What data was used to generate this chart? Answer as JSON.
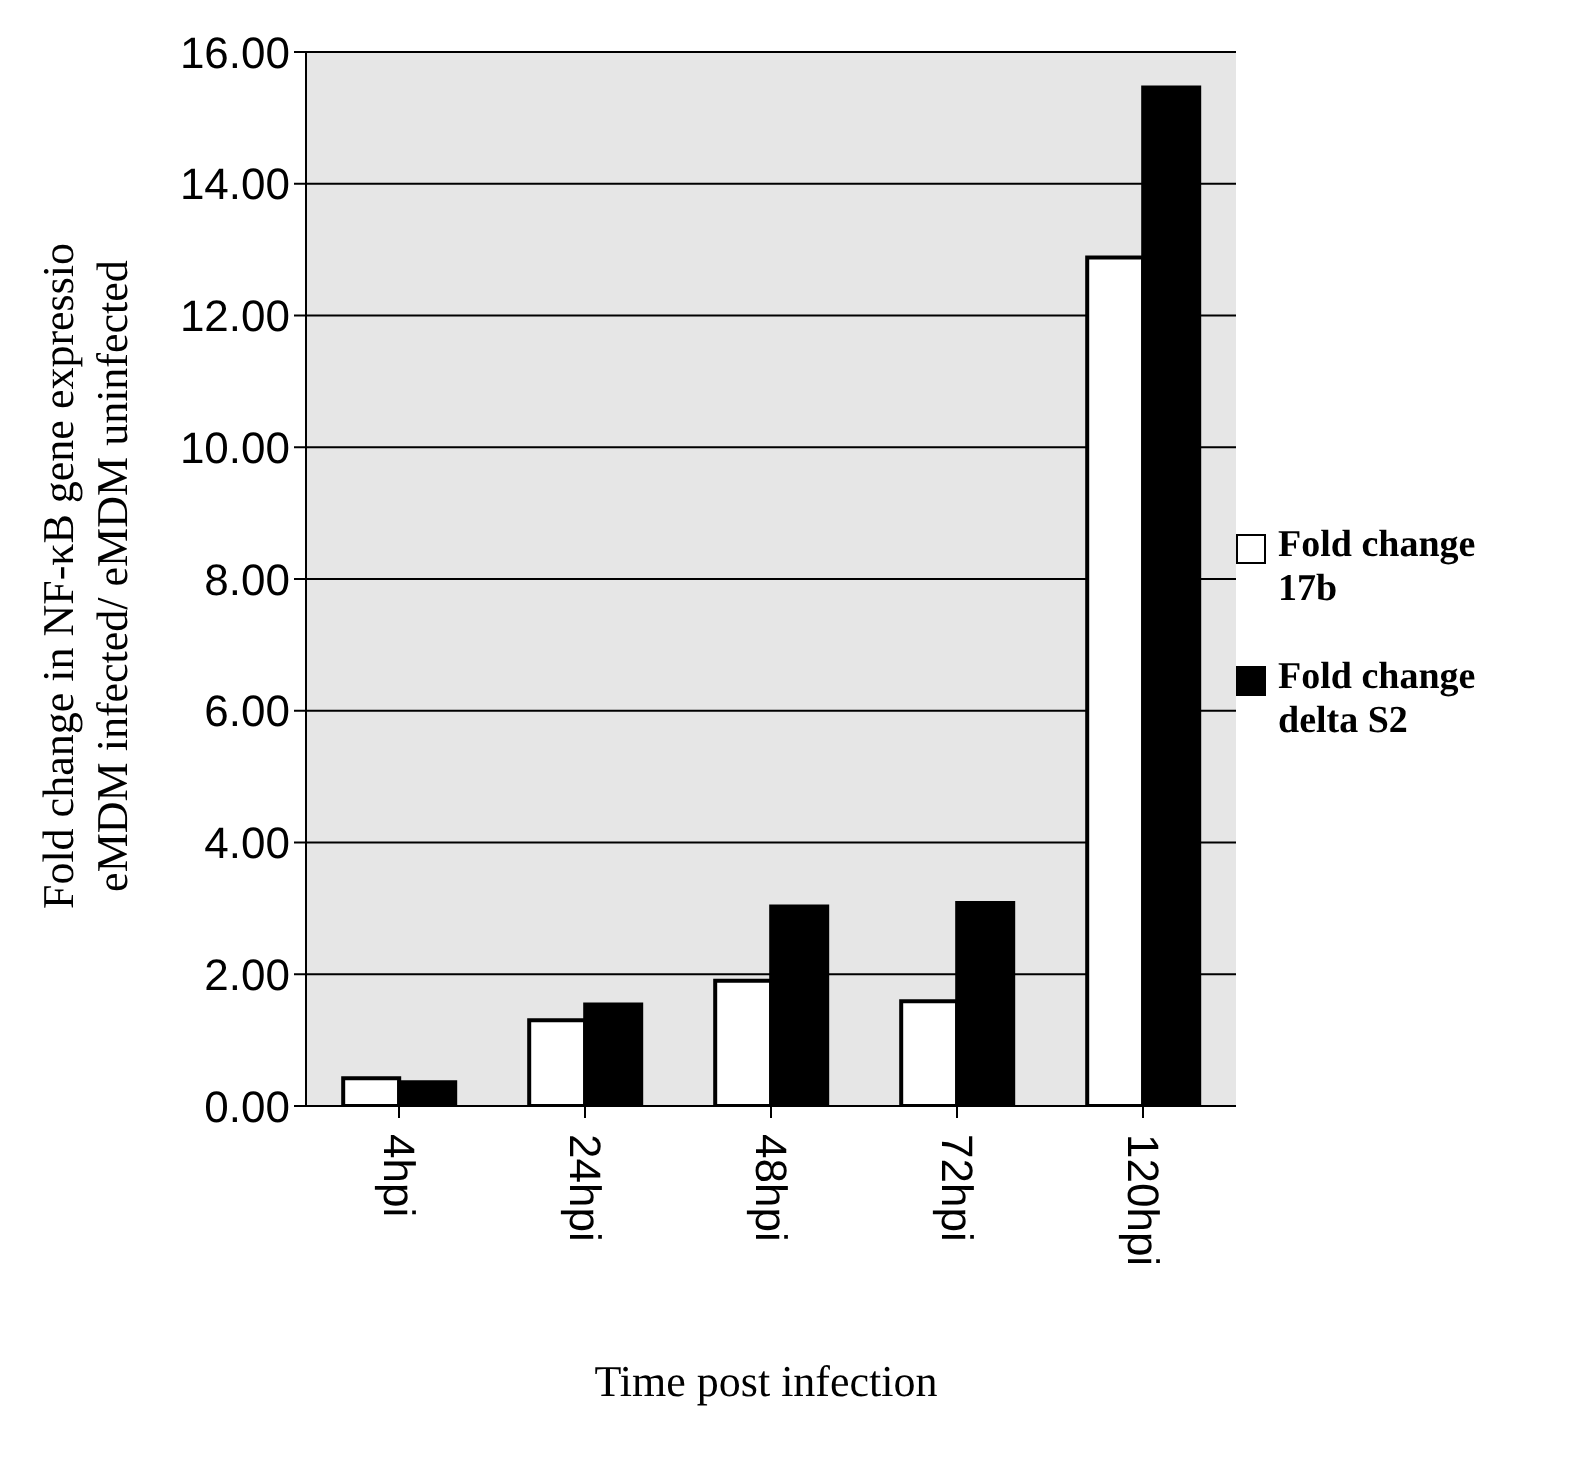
{
  "chart_data": {
    "type": "bar",
    "xlabel": "Time post infection",
    "ylabel": "Fold change in NF-κB gene expressio\neMDM infected/ eMDM uninfected",
    "categories": [
      "4hpi",
      "24hpi",
      "48hpi",
      "72hpi",
      "120hpi"
    ],
    "series": [
      {
        "name": "Fold change 17b",
        "color": "#ffffff",
        "values": [
          0.42,
          1.3,
          1.9,
          1.59,
          12.88
        ]
      },
      {
        "name": "Fold change delta S2",
        "color": "#000000",
        "values": [
          0.36,
          1.54,
          3.03,
          3.08,
          15.46
        ]
      }
    ],
    "ylim": [
      0,
      16
    ],
    "yticks": [
      {
        "value": 0,
        "label": "0.00"
      },
      {
        "value": 2,
        "label": "2.00"
      },
      {
        "value": 4,
        "label": "4.00"
      },
      {
        "value": 6,
        "label": "6.00"
      },
      {
        "value": 8,
        "label": "8.00"
      },
      {
        "value": 10,
        "label": "10.00"
      },
      {
        "value": 12,
        "label": "12.00"
      },
      {
        "value": 14,
        "label": "14.00"
      },
      {
        "value": 16,
        "label": "16.00"
      }
    ],
    "grid": "y",
    "legend": "right"
  }
}
